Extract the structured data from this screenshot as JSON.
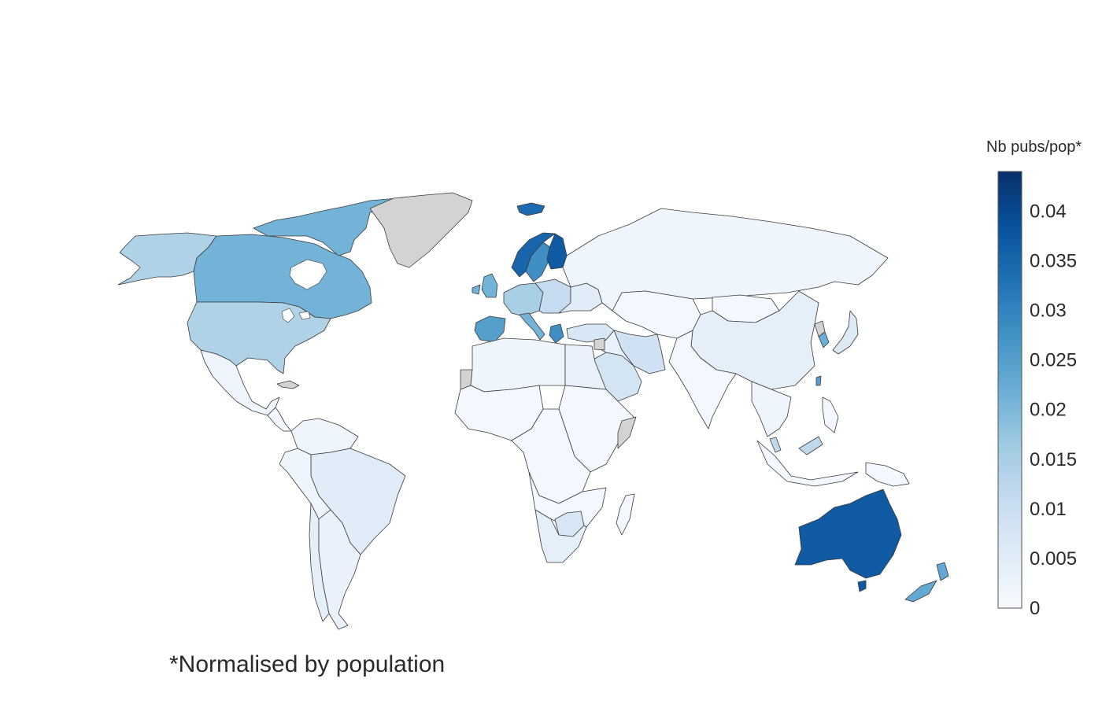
{
  "colorbar": {
    "title": "Nb pubs/pop*",
    "min": 0,
    "max": 0.044,
    "ticks": [
      {
        "value": 0,
        "label": "0"
      },
      {
        "value": 0.005,
        "label": "0.005"
      },
      {
        "value": 0.01,
        "label": "0.01"
      },
      {
        "value": 0.015,
        "label": "0.015"
      },
      {
        "value": 0.02,
        "label": "0.02"
      },
      {
        "value": 0.025,
        "label": "0.025"
      },
      {
        "value": 0.03,
        "label": "0.03"
      },
      {
        "value": 0.035,
        "label": "0.035"
      },
      {
        "value": 0.04,
        "label": "0.04"
      }
    ],
    "colorscale": [
      "#f7fbff",
      "#deebf7",
      "#c6dbef",
      "#9ecae1",
      "#6baed6",
      "#4292c6",
      "#2171b5",
      "#08519c",
      "#08306b"
    ],
    "no_data_color": "#d3d3d3"
  },
  "footnote": "*Normalised by population",
  "regions": [
    {
      "name": "Canada",
      "value": 0.021
    },
    {
      "name": "United States",
      "value": 0.014
    },
    {
      "name": "Alaska",
      "value": 0.014
    },
    {
      "name": "Canadian Arctic Islands",
      "value": 0.021
    },
    {
      "name": "Greenland",
      "value": null
    },
    {
      "name": "Iceland",
      "value": 0.034
    },
    {
      "name": "Mexico",
      "value": 0.002
    },
    {
      "name": "Central America",
      "value": 0.001
    },
    {
      "name": "Cuba",
      "value": null
    },
    {
      "name": "Colombia & Venezuela",
      "value": 0.002
    },
    {
      "name": "Brazil",
      "value": 0.005
    },
    {
      "name": "Peru & Bolivia",
      "value": 0.002
    },
    {
      "name": "Chile",
      "value": 0.004
    },
    {
      "name": "Argentina",
      "value": 0.003
    },
    {
      "name": "Norway",
      "value": 0.035
    },
    {
      "name": "Sweden",
      "value": 0.028
    },
    {
      "name": "Finland",
      "value": 0.037
    },
    {
      "name": "United Kingdom",
      "value": 0.021
    },
    {
      "name": "Western Europe",
      "value": 0.015
    },
    {
      "name": "Central Europe",
      "value": 0.011
    },
    {
      "name": "Spain & Portugal",
      "value": 0.025
    },
    {
      "name": "Italy",
      "value": 0.021
    },
    {
      "name": "Greece",
      "value": 0.028
    },
    {
      "name": "Eastern Europe",
      "value": 0.005
    },
    {
      "name": "Turkey",
      "value": 0.007
    },
    {
      "name": "Russia",
      "value": 0.002
    },
    {
      "name": "Kazakhstan & Central Asia",
      "value": 0.001
    },
    {
      "name": "China",
      "value": 0.004
    },
    {
      "name": "Mongolia",
      "value": 0.001
    },
    {
      "name": "Korea",
      "value": 0.022
    },
    {
      "name": "North Korea",
      "value": null
    },
    {
      "name": "Japan",
      "value": 0.006
    },
    {
      "name": "Taiwan",
      "value": 0.025
    },
    {
      "name": "India",
      "value": 0.001
    },
    {
      "name": "Iran",
      "value": 0.009
    },
    {
      "name": "Saudi Arabia",
      "value": 0.008
    },
    {
      "name": "Middle East",
      "value": 0.003
    },
    {
      "name": "Southeast Asia",
      "value": 0.002
    },
    {
      "name": "Malaysia",
      "value": 0.012
    },
    {
      "name": "Indonesia",
      "value": 0.001
    },
    {
      "name": "Philippines",
      "value": 0.001
    },
    {
      "name": "Papua New Guinea",
      "value": 0.001
    },
    {
      "name": "North Africa",
      "value": 0.002
    },
    {
      "name": "Egypt",
      "value": 0.003
    },
    {
      "name": "West Africa",
      "value": 0.001
    },
    {
      "name": "Central Africa",
      "value": 0.001
    },
    {
      "name": "East Africa",
      "value": 0.001
    },
    {
      "name": "Southern Africa",
      "value": 0.001
    },
    {
      "name": "South Africa",
      "value": 0.004
    },
    {
      "name": "Botswana & Zimbabwe",
      "value": 0.007
    },
    {
      "name": "Madagascar",
      "value": 0.001
    },
    {
      "name": "Somalia",
      "value": null
    },
    {
      "name": "Western Sahara",
      "value": null
    },
    {
      "name": "Syria",
      "value": null
    },
    {
      "name": "Australia",
      "value": 0.037
    },
    {
      "name": "Tasmania",
      "value": 0.037
    },
    {
      "name": "New Zealand",
      "value": 0.023
    }
  ]
}
